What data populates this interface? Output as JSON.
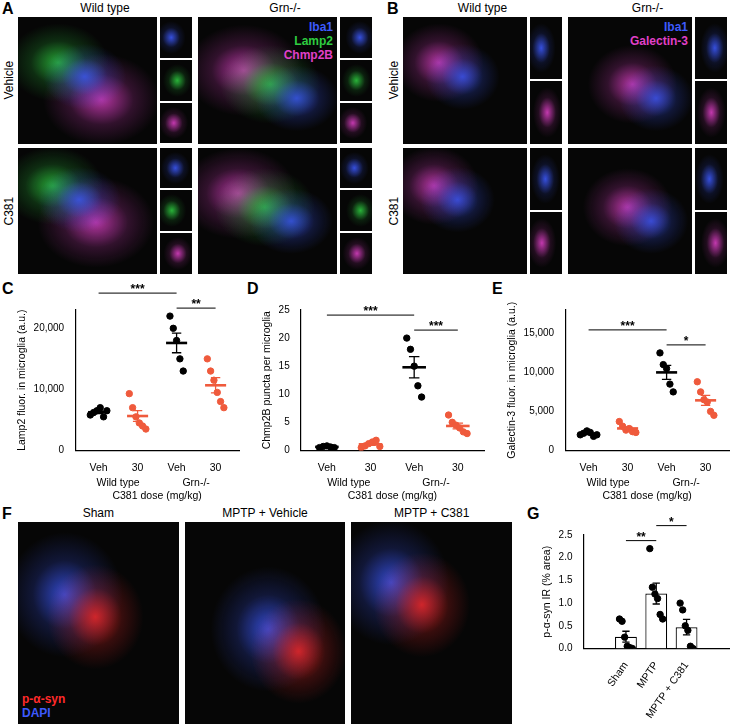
{
  "image_panels": [
    {
      "panel": "A",
      "columns": [
        "Wild type",
        "Grn-/-"
      ],
      "rows": [
        "Vehicle",
        "C381"
      ],
      "channels": [
        {
          "name": "Iba1",
          "color": "#3d5afe"
        },
        {
          "name": "Lamp2",
          "color": "#2ecc40"
        },
        {
          "name": "Chmp2B",
          "color": "#e040c8"
        }
      ]
    },
    {
      "panel": "B",
      "columns": [
        "Wild type",
        "Grn-/-"
      ],
      "rows": [
        "Vehicle",
        "C381"
      ],
      "channels": [
        {
          "name": "Iba1",
          "color": "#3d5afe"
        },
        {
          "name": "Galectin-3",
          "color": "#e040c8"
        }
      ]
    },
    {
      "panel": "F",
      "columns": [
        "Sham",
        "MPTP + Vehicle",
        "MPTP + C381"
      ],
      "channels": [
        {
          "name": "p-α-syn",
          "color": "#ff2a2a"
        },
        {
          "name": "DAPI",
          "color": "#3d5afe"
        }
      ]
    }
  ],
  "chart_data": [
    {
      "panel": "C",
      "type": "scatter",
      "y_label": "Lamp2 fluor. in microglia (a.u.)",
      "x_label": "C381 dose (mg/kg)",
      "categories": [
        "Veh",
        "30",
        "Veh",
        "30"
      ],
      "groups": [
        "Wild type",
        "Grn-/-"
      ],
      "colors": [
        "#000000",
        "#ef5a3c",
        "#000000",
        "#ef5a3c"
      ],
      "points": [
        [
          5800,
          6200,
          6500,
          7000,
          5500,
          6500
        ],
        [
          9300,
          7000,
          5500,
          4500,
          4000,
          3500
        ],
        [
          22000,
          20000,
          18000,
          15000,
          13000
        ],
        [
          15000,
          13000,
          11500,
          9500,
          8000,
          7000
        ]
      ],
      "values": [
        6250,
        5633,
        17600,
        10667
      ],
      "sem": [
        230,
        880,
        1600,
        1250
      ],
      "ylim": [
        0,
        23000
      ],
      "yticks": [
        0,
        {
          "value": 10000,
          "label": "10,000"
        },
        {
          "value": 20000,
          "label": "20,000"
        }
      ],
      "significance": [
        {
          "pair": [
            0,
            2
          ],
          "label": "***"
        },
        {
          "pair": [
            2,
            3
          ],
          "label": "**"
        }
      ],
      "grid": false
    },
    {
      "panel": "D",
      "type": "scatter",
      "y_label": "Chmp2B puncta per microglia",
      "x_label": "C381 dose (mg/kg)",
      "categories": [
        "Veh",
        "30",
        "Veh",
        "30"
      ],
      "groups": [
        "Wild type",
        "Grn-/-"
      ],
      "colors": [
        "#000000",
        "#ef5a3c",
        "#000000",
        "#ef5a3c"
      ],
      "points": [
        [
          0.5,
          0.7,
          0.8,
          0.6,
          0.5
        ],
        [
          0.5,
          0.8,
          1.2,
          1.5,
          1.8,
          0.7
        ],
        [
          20,
          18,
          15,
          11.5,
          9.5
        ],
        [
          6.3,
          5,
          4.5,
          4,
          3.3,
          3
        ]
      ],
      "values": [
        0.62,
        1.08,
        14.8,
        4.35
      ],
      "sem": [
        0.06,
        0.2,
        1.9,
        0.5
      ],
      "ylim": [
        0,
        25
      ],
      "yticks": [
        0,
        5,
        10,
        15,
        20,
        25
      ],
      "significance": [
        {
          "pair": [
            0,
            2
          ],
          "label": "***"
        },
        {
          "pair": [
            2,
            3
          ],
          "label": "***"
        }
      ],
      "grid": false
    },
    {
      "panel": "E",
      "type": "scatter",
      "y_label": "Galectin-3 fluor. in microglia (a.u.)",
      "x_label": "C381 dose (mg/kg)",
      "categories": [
        "Veh",
        "30",
        "Veh",
        "30"
      ],
      "groups": [
        "Wild type",
        "Grn-/-"
      ],
      "colors": [
        "#000000",
        "#ef5a3c",
        "#000000",
        "#ef5a3c"
      ],
      "points": [
        [
          2000,
          2200,
          2500,
          2300,
          1800,
          2000
        ],
        [
          3700,
          3100,
          2600,
          2800,
          2400,
          2300
        ],
        [
          12500,
          11000,
          10500,
          8500,
          7500
        ],
        [
          8800,
          7500,
          6500,
          6200,
          5000,
          4500
        ]
      ],
      "values": [
        2133,
        2817,
        10000,
        6417
      ],
      "sem": [
        100,
        210,
        900,
        640
      ],
      "ylim": [
        0,
        18000
      ],
      "yticks": [
        0,
        {
          "value": 5000,
          "label": "5,000"
        },
        {
          "value": 10000,
          "label": "10,000"
        },
        {
          "value": 15000,
          "label": "15,000"
        }
      ],
      "significance": [
        {
          "pair": [
            0,
            2
          ],
          "label": "***"
        },
        {
          "pair": [
            2,
            3
          ],
          "label": "*"
        }
      ],
      "grid": false
    },
    {
      "panel": "G",
      "type": "bar",
      "y_label": "p-α-syn IR (% area)",
      "categories": [
        "Sham",
        "MPTP",
        "MPTP + C381"
      ],
      "color": "#000000",
      "points": [
        [
          0.65,
          0.6,
          0.25,
          0.05,
          0.02,
          0.0
        ],
        [
          2.2,
          1.35,
          1.2,
          1.1,
          0.75,
          0.65
        ],
        [
          1.0,
          0.85,
          0.5,
          0.4,
          0.05,
          0.0
        ]
      ],
      "values": [
        0.26,
        1.21,
        0.47
      ],
      "sem": [
        0.12,
        0.23,
        0.17
      ],
      "ylim": [
        0,
        2.5
      ],
      "yticks": [
        {
          "value": 0,
          "label": "0.0"
        },
        {
          "value": 0.5,
          "label": "0.5"
        },
        {
          "value": 1,
          "label": "1.0"
        },
        {
          "value": 1.5,
          "label": "1.5"
        },
        {
          "value": 2,
          "label": "2.0"
        },
        {
          "value": 2.5,
          "label": "2.5"
        }
      ],
      "significance": [
        {
          "pair": [
            0,
            1
          ],
          "label": "**"
        },
        {
          "pair": [
            1,
            2
          ],
          "label": "*"
        }
      ],
      "grid": false
    }
  ]
}
